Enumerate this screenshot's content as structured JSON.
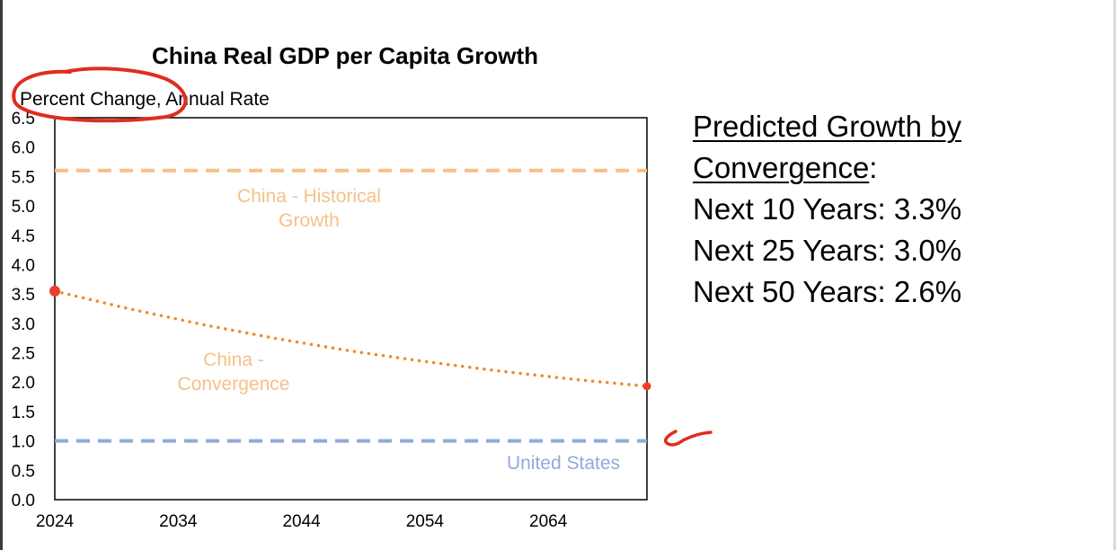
{
  "chart_data": {
    "type": "line",
    "title": "China Real GDP per Capita Growth",
    "ylabel": "Percent Change, Annual Rate",
    "xlabel": "",
    "xlim": [
      2024,
      2072
    ],
    "ylim": [
      0,
      6.5
    ],
    "x_ticks": [
      2024,
      2034,
      2044,
      2054,
      2064
    ],
    "y_ticks": [
      "0.0",
      "0.5",
      "1.0",
      "1.5",
      "2.0",
      "2.5",
      "3.0",
      "3.5",
      "4.0",
      "4.5",
      "5.0",
      "5.5",
      "6.0",
      "6.5"
    ],
    "grid": false,
    "series": [
      {
        "name": "China - Historical Growth",
        "style": "dashed",
        "color": "#f4c189",
        "x": [
          2024,
          2072
        ],
        "y": [
          5.6,
          5.6
        ]
      },
      {
        "name": "China - Convergence",
        "style": "dotted",
        "color": "#ef8b2c",
        "marker_color": "#e8402a",
        "x": [
          2024,
          2030,
          2036,
          2042,
          2048,
          2054,
          2060,
          2066,
          2072
        ],
        "y": [
          3.55,
          3.25,
          2.98,
          2.74,
          2.53,
          2.35,
          2.19,
          2.05,
          1.93
        ]
      },
      {
        "name": "United States",
        "style": "dashed",
        "color": "#8faadc",
        "x": [
          2024,
          2072
        ],
        "y": [
          1.0,
          1.0
        ]
      }
    ],
    "annotations": [
      {
        "lines": [
          "China - Historical",
          "Growth"
        ],
        "color": "#f4c189"
      },
      {
        "lines": [
          "China -",
          "Convergence"
        ],
        "color": "#f4c189"
      },
      {
        "lines": [
          "United States"
        ],
        "color": "#8faadc"
      }
    ]
  },
  "side_panel": {
    "heading_line1": "Predicted Growth by",
    "heading_line2": "Convergence",
    "heading_suffix": ":",
    "rows": [
      "Next 10 Years: 3.3%",
      "Next 25 Years: 3.0%",
      "Next 50 Years: 2.6%"
    ]
  },
  "ink_color": "#e02d1f"
}
